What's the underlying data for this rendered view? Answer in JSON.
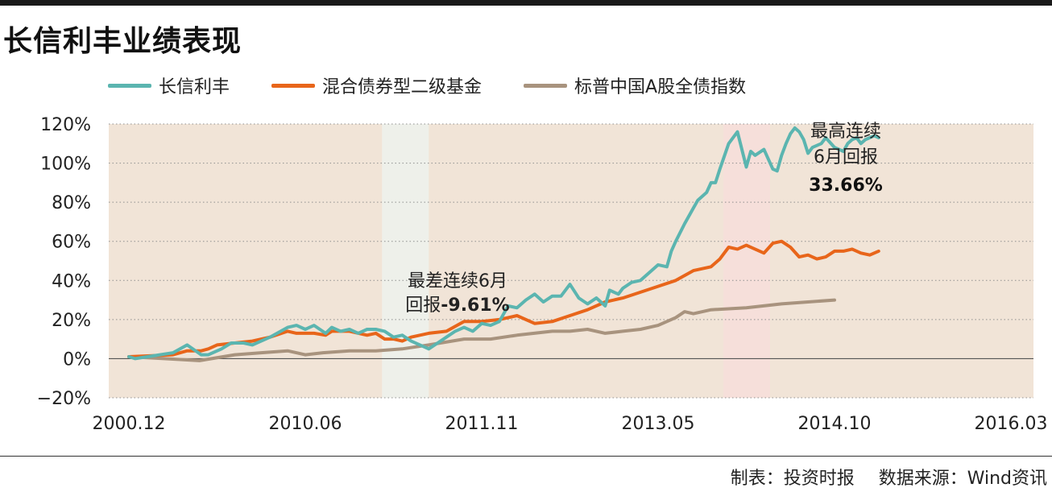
{
  "title": "长信利丰业绩表现",
  "footer": {
    "made_by": "制表：投资时报",
    "source": "数据来源：Wind资讯"
  },
  "colors": {
    "fund": "#5bb5b0",
    "hybrid": "#e8651a",
    "index": "#a8937e",
    "plot_bg": "#f1e4d7",
    "worst_band": "#eef0ea",
    "best_band": "#f6dfda"
  },
  "annotations": {
    "worst": {
      "line1": "最差连续6月",
      "line2_prefix": "回报",
      "line2_value": "-9.61%"
    },
    "best": {
      "line1": "最高连续",
      "line2": "6月回报",
      "line3_value": "33.66%"
    }
  },
  "chart_data": {
    "type": "line",
    "x_ticks": [
      "2000.12",
      "2010.06",
      "2011.11",
      "2013.05",
      "2014.10",
      "2016.03"
    ],
    "y_ticks": [
      "120%",
      "100%",
      "80%",
      "60%",
      "40%",
      "20%",
      "0%",
      "−20%"
    ],
    "ylim": [
      -20,
      120
    ],
    "x_unit": "normalized time position between first and last x tick (0 = 2000.12, 1 = 2016.03)",
    "grid": "horizontal dotted",
    "legend_position": "top-left",
    "highlight_bands": [
      {
        "name": "worst-6m",
        "x_range": [
          0.287,
          0.34
        ]
      },
      {
        "name": "best-6m",
        "x_range": [
          0.674,
          0.727
        ]
      }
    ],
    "series": [
      {
        "name": "长信利丰",
        "x": [
          0,
          0.007,
          0.05,
          0.066,
          0.082,
          0.09,
          0.105,
          0.116,
          0.13,
          0.14,
          0.16,
          0.18,
          0.19,
          0.2,
          0.21,
          0.223,
          0.23,
          0.24,
          0.25,
          0.26,
          0.27,
          0.28,
          0.29,
          0.3,
          0.31,
          0.32,
          0.33,
          0.34,
          0.35,
          0.36,
          0.37,
          0.38,
          0.39,
          0.4,
          0.41,
          0.42,
          0.43,
          0.44,
          0.45,
          0.46,
          0.47,
          0.48,
          0.49,
          0.5,
          0.51,
          0.52,
          0.53,
          0.54,
          0.545,
          0.55,
          0.555,
          0.56,
          0.57,
          0.58,
          0.59,
          0.6,
          0.61,
          0.615,
          0.62,
          0.63,
          0.64,
          0.645,
          0.655,
          0.66,
          0.665,
          0.67,
          0.68,
          0.69,
          0.7,
          0.705,
          0.71,
          0.72,
          0.73,
          0.735,
          0.74,
          0.745,
          0.75,
          0.755,
          0.76,
          0.765,
          0.77,
          0.775,
          0.78,
          0.785,
          0.79,
          0.8,
          0.81,
          0.815,
          0.82,
          0.825,
          0.83,
          0.835,
          0.84,
          0.845,
          0.85
        ],
        "values": [
          1,
          0,
          3,
          7,
          2,
          2,
          5,
          8,
          8,
          7,
          11,
          16,
          17,
          15,
          17,
          13,
          16,
          14,
          15,
          13,
          15,
          15,
          14,
          11,
          12,
          9,
          7,
          5,
          8,
          11,
          14,
          16,
          14,
          18,
          17,
          19,
          27,
          26,
          30,
          33,
          29,
          32,
          32,
          38,
          31,
          28,
          31,
          27,
          35,
          34,
          33,
          36,
          39,
          40,
          44,
          48,
          47,
          55,
          60,
          69,
          77,
          81,
          85,
          90,
          90,
          97,
          110,
          116,
          98,
          106,
          104,
          107,
          97,
          96,
          104,
          110,
          115,
          118,
          116,
          112,
          105,
          108,
          109,
          110,
          113,
          108,
          106,
          110,
          112,
          113,
          110,
          112,
          113,
          114,
          113
        ]
      },
      {
        "name": "混合债券型二级基金",
        "x": [
          0,
          0.05,
          0.066,
          0.082,
          0.09,
          0.1,
          0.14,
          0.16,
          0.18,
          0.19,
          0.2,
          0.21,
          0.223,
          0.23,
          0.25,
          0.27,
          0.28,
          0.29,
          0.3,
          0.31,
          0.32,
          0.34,
          0.36,
          0.38,
          0.4,
          0.42,
          0.44,
          0.46,
          0.48,
          0.5,
          0.52,
          0.54,
          0.56,
          0.58,
          0.6,
          0.62,
          0.64,
          0.66,
          0.67,
          0.68,
          0.69,
          0.7,
          0.72,
          0.73,
          0.74,
          0.75,
          0.76,
          0.77,
          0.78,
          0.79,
          0.8,
          0.81,
          0.82,
          0.83,
          0.84,
          0.85
        ],
        "values": [
          1,
          2,
          4,
          4,
          5,
          7,
          9,
          11,
          14,
          13,
          13,
          13,
          12,
          14,
          14,
          12,
          13,
          10,
          10,
          9,
          11,
          13,
          14,
          19,
          19,
          20,
          22,
          18,
          19,
          22,
          25,
          29,
          31,
          34,
          37,
          40,
          45,
          47,
          51,
          57,
          56,
          58,
          54,
          59,
          60,
          57,
          52,
          53,
          51,
          52,
          55,
          55,
          56,
          54,
          53,
          55
        ]
      },
      {
        "name": "标普中国A股全债指数",
        "x": [
          0,
          0.04,
          0.08,
          0.12,
          0.15,
          0.18,
          0.2,
          0.22,
          0.25,
          0.28,
          0.31,
          0.34,
          0.38,
          0.41,
          0.44,
          0.48,
          0.5,
          0.52,
          0.54,
          0.56,
          0.58,
          0.6,
          0.62,
          0.63,
          0.64,
          0.66,
          0.7,
          0.74,
          0.77,
          0.8
        ],
        "values": [
          1,
          0,
          -1,
          2,
          3,
          4,
          2,
          3,
          4,
          4,
          5,
          7,
          10,
          10,
          12,
          14,
          14,
          15,
          13,
          14,
          15,
          17,
          21,
          24,
          23,
          25,
          26,
          28,
          29,
          30
        ]
      }
    ]
  }
}
